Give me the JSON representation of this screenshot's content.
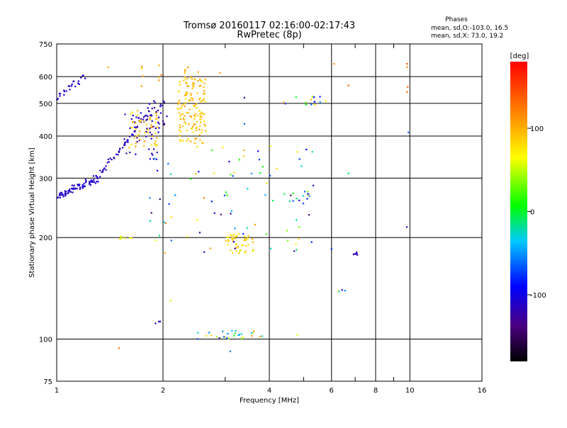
{
  "chart_data": {
    "type": "scatter",
    "title": "Tromsø 20160117 02:16:00-02:17:43",
    "subtitle": "RwPretec (8p)",
    "xlabel": "Frequency [MHz]",
    "ylabel": "Stationary phase Virtual Height [km]",
    "x_scale": "log",
    "y_scale": "log",
    "xlim": [
      1,
      16
    ],
    "ylim": [
      75,
      750
    ],
    "x_ticks": [
      1,
      2,
      4,
      6,
      8,
      10,
      16
    ],
    "x_tick_labels": [
      "1",
      "2",
      "4",
      "6",
      "8",
      "10",
      "16"
    ],
    "x_minor_ticks": [
      3,
      5,
      7,
      9
    ],
    "y_ticks": [
      75,
      100,
      200,
      300,
      400,
      500,
      600,
      750
    ],
    "y_tick_labels": [
      "75",
      "100",
      "200",
      "300",
      "400",
      "500",
      "600",
      "750"
    ],
    "grid": true,
    "phase_box": {
      "heading": "Phases",
      "line_o": "mean, sd,O:-103.0, 16.5",
      "line_x": "mean, sd,X:  73.0, 19.2"
    },
    "colorbar": {
      "label": "[deg]",
      "range": [
        -180,
        180
      ],
      "ticks": [
        100,
        0,
        -100
      ],
      "tick_labels": [
        "100",
        "0",
        "-100"
      ]
    },
    "series": [
      {
        "clusters": [
          {
            "x": [
              1.0,
              1.3
            ],
            "y": [
              265,
              300
            ],
            "phase": [
              -120,
              -100
            ],
            "n": 80,
            "kind": "curve"
          },
          {
            "x": [
              1.3,
              1.85
            ],
            "y": [
              300,
              480
            ],
            "phase": [
              -125,
              -100
            ],
            "n": 55,
            "kind": "curve"
          },
          {
            "x": [
              1.0,
              1.2
            ],
            "y": [
              520,
              600
            ],
            "phase": [
              -120,
              -100
            ],
            "n": 24,
            "kind": "curve"
          },
          {
            "x": [
              1.55,
              1.95
            ],
            "y": [
              340,
              470
            ],
            "phase": [
              -125,
              -100
            ],
            "n": 40,
            "kind": "blob"
          },
          {
            "x": [
              1.6,
              1.95
            ],
            "y": [
              370,
              480
            ],
            "phase": [
              70,
              110
            ],
            "n": 50,
            "kind": "blob"
          },
          {
            "x": [
              1.8,
              2.1
            ],
            "y": [
              420,
              520
            ],
            "phase": [
              -130,
              -100
            ],
            "n": 25,
            "kind": "blob"
          },
          {
            "x": [
              2.2,
              2.65
            ],
            "y": [
              380,
              600
            ],
            "phase": [
              75,
              110
            ],
            "n": 140,
            "kind": "blob"
          },
          {
            "x": [
              2.3,
              2.55
            ],
            "y": [
              560,
              650
            ],
            "phase": [
              90,
              120
            ],
            "n": 12,
            "kind": "blob"
          },
          {
            "x": [
              1.7,
              2.0
            ],
            "y": [
              560,
              650
            ],
            "phase": [
              90,
              120
            ],
            "n": 8,
            "kind": "blob"
          },
          {
            "x": [
              3.0,
              3.6
            ],
            "y": [
              180,
              205
            ],
            "phase": [
              70,
              100
            ],
            "n": 45,
            "kind": "blob"
          },
          {
            "x": [
              2.5,
              3.9
            ],
            "y": [
              100,
              106
            ],
            "phase": [
              -110,
              110
            ],
            "n": 30,
            "kind": "blob"
          },
          {
            "x": [
              1.5,
              1.65
            ],
            "y": [
              198,
              202
            ],
            "phase": [
              50,
              80
            ],
            "n": 8,
            "kind": "blob"
          },
          {
            "x": [
              4.2,
              5.8
            ],
            "y": [
              495,
              525
            ],
            "phase": [
              -100,
              120
            ],
            "n": 14,
            "kind": "blob"
          },
          {
            "x": [
              4.6,
              5.2
            ],
            "y": [
              250,
              275
            ],
            "phase": [
              -100,
              10
            ],
            "n": 10,
            "kind": "blob"
          },
          {
            "x": [
              1.8,
              5.5
            ],
            "y": [
              180,
              380
            ],
            "phase": [
              -150,
              130
            ],
            "n": 90,
            "kind": "scatter"
          },
          {
            "x": [
              6.9,
              7.1
            ],
            "y": [
              177,
              181
            ],
            "phase": [
              -120,
              -110
            ],
            "n": 6,
            "kind": "blob"
          },
          {
            "x": [
              6.2,
              6.6
            ],
            "y": [
              138,
              140
            ],
            "phase": [
              -110,
              80
            ],
            "n": 4,
            "kind": "blob"
          },
          {
            "x": [
              1.9,
              2.0
            ],
            "y": [
              111,
              113
            ],
            "phase": [
              -120,
              -110
            ],
            "n": 3,
            "kind": "blob"
          },
          {
            "x": [
              9.8,
              9.9
            ],
            "y": [
              530,
              680
            ],
            "phase": [
              110,
              140
            ],
            "n": 4,
            "kind": "blob"
          }
        ],
        "points": [
          {
            "x": 9.9,
            "y": 410,
            "phase": -60
          },
          {
            "x": 9.8,
            "y": 215,
            "phase": -120
          },
          {
            "x": 6.7,
            "y": 310,
            "phase": -10
          },
          {
            "x": 6.7,
            "y": 565,
            "phase": 130
          },
          {
            "x": 6.1,
            "y": 655,
            "phase": 110
          },
          {
            "x": 6.0,
            "y": 185,
            "phase": -80
          },
          {
            "x": 3.1,
            "y": 92,
            "phase": -60
          },
          {
            "x": 1.5,
            "y": 94,
            "phase": 130
          },
          {
            "x": 2.1,
            "y": 130,
            "phase": 50
          },
          {
            "x": 4.8,
            "y": 103,
            "phase": 60
          },
          {
            "x": 3.4,
            "y": 520,
            "phase": -120
          },
          {
            "x": 3.4,
            "y": 435,
            "phase": -60
          },
          {
            "x": 1.4,
            "y": 640,
            "phase": 100
          },
          {
            "x": 2.9,
            "y": 615,
            "phase": 110
          }
        ]
      }
    ]
  }
}
